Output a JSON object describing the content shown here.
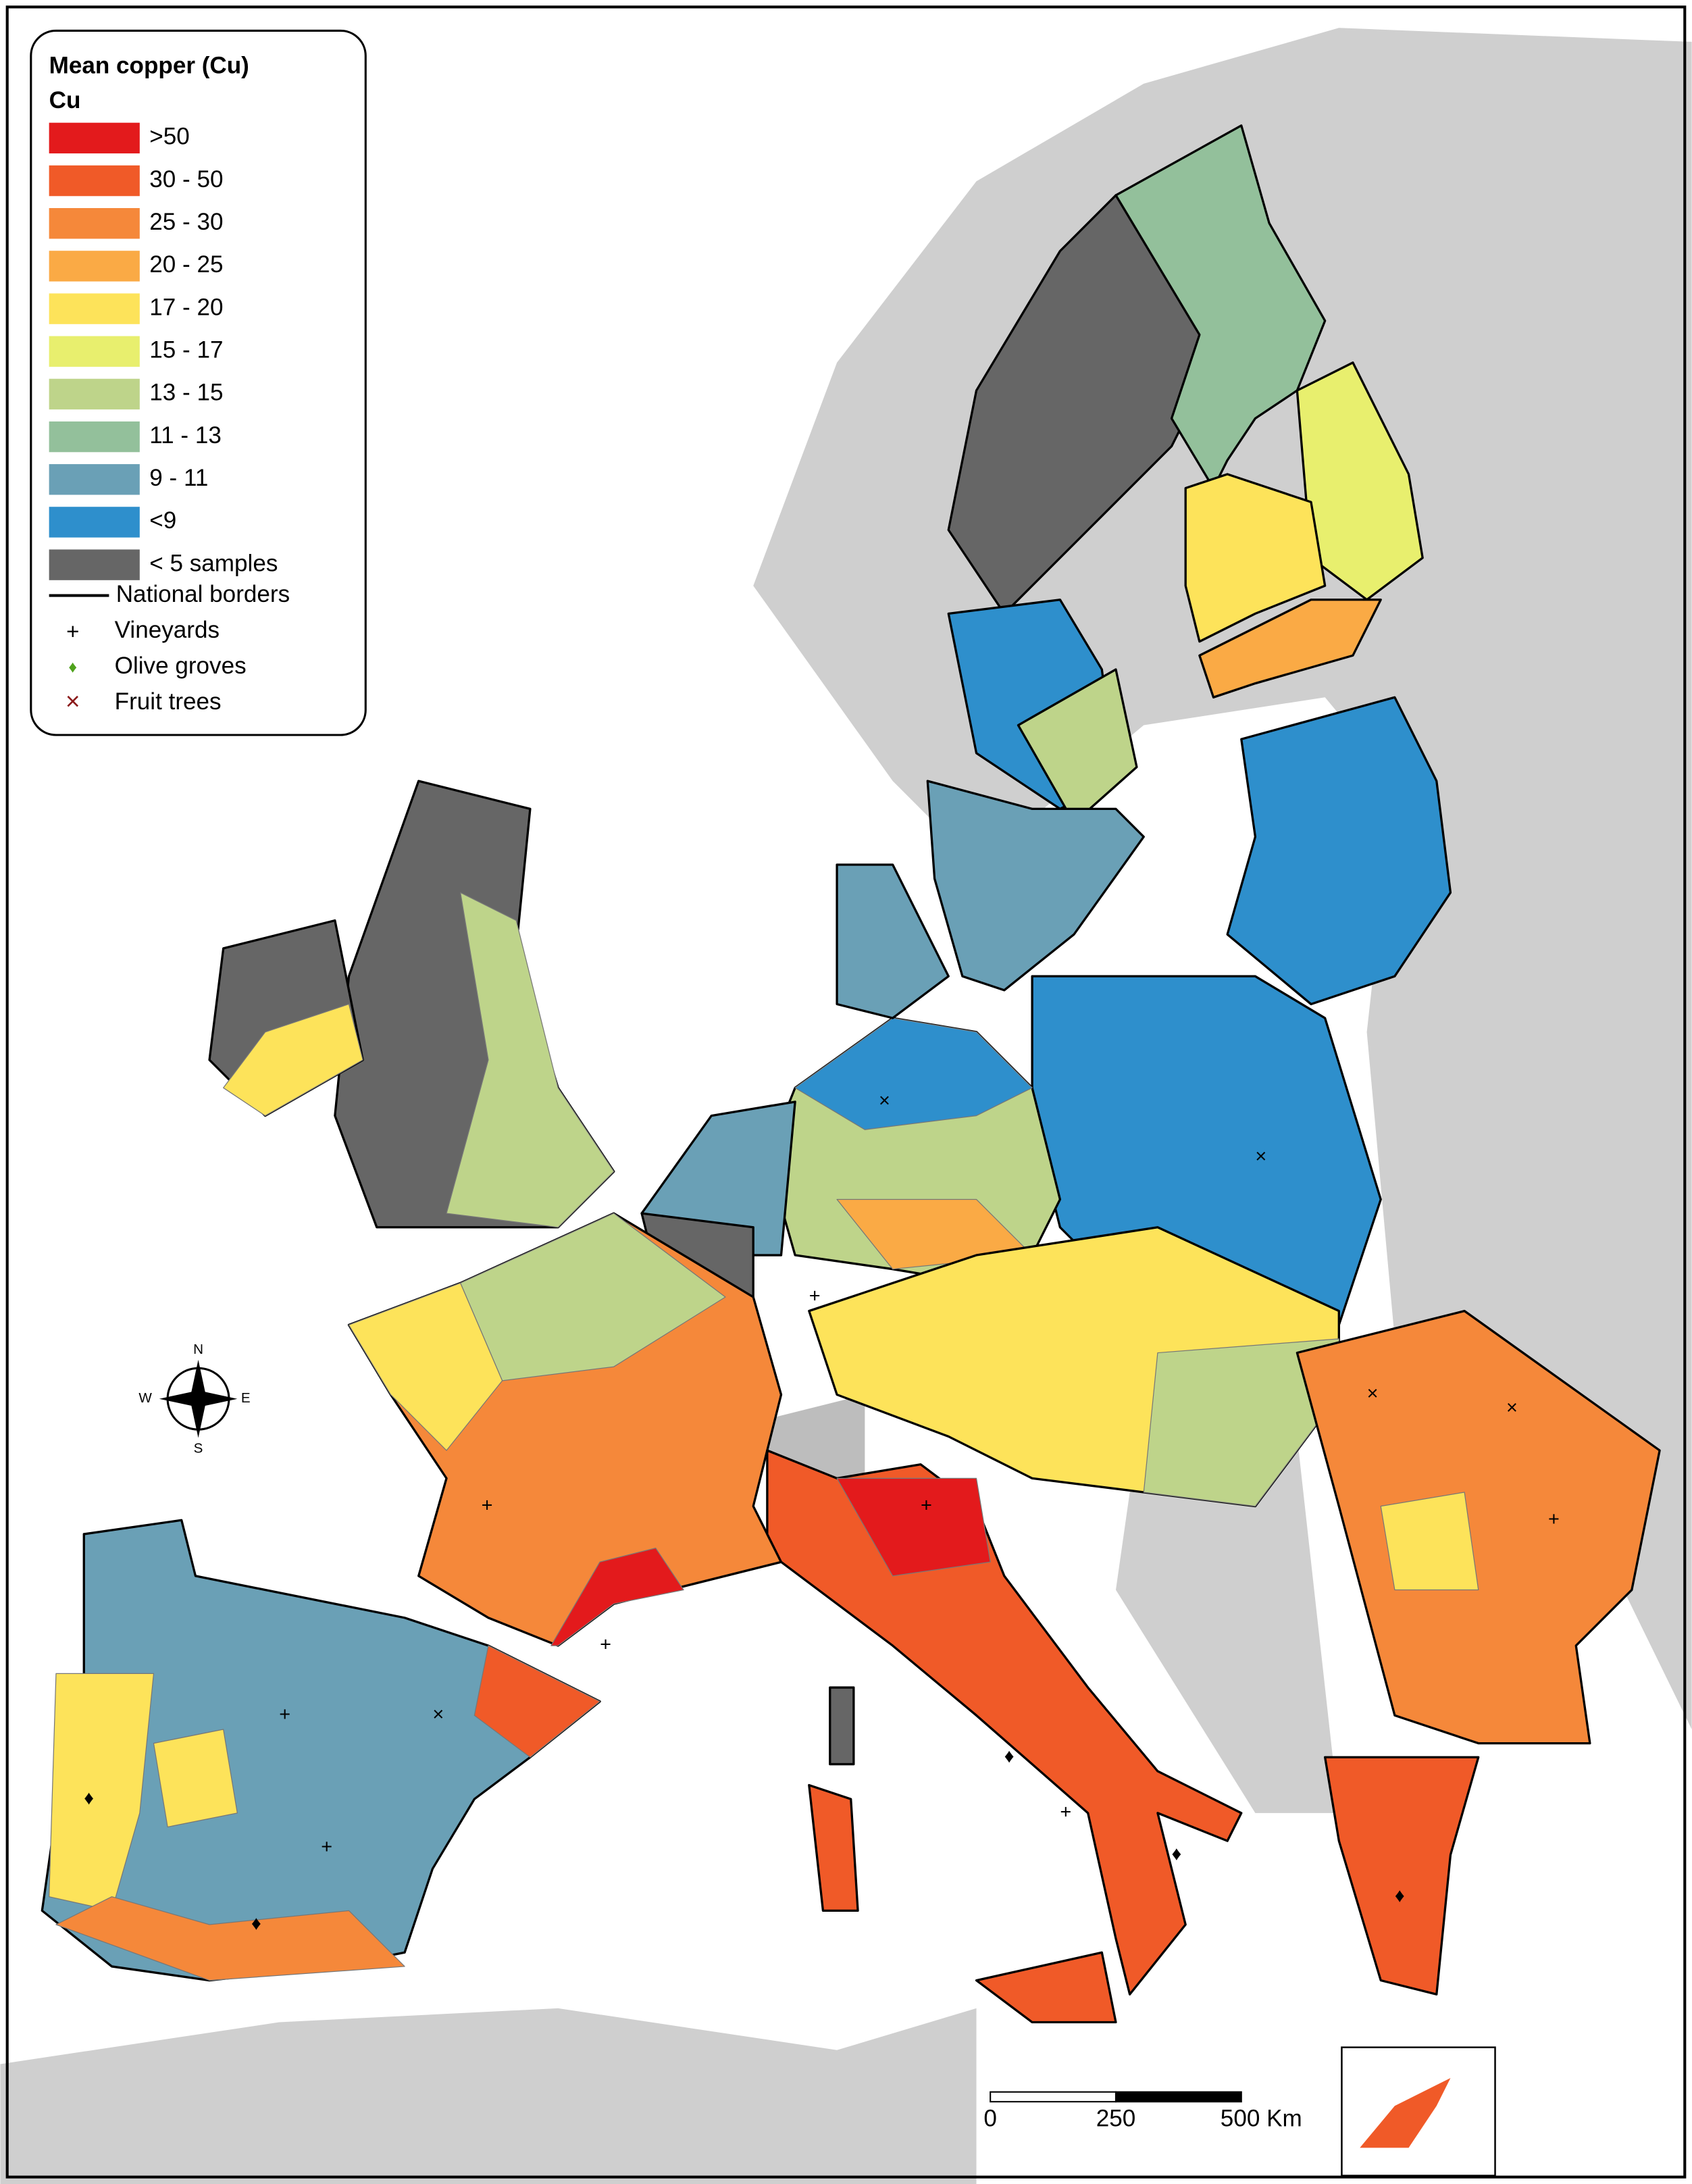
{
  "legend": {
    "title": "Mean copper (Cu)",
    "subtitle": "Cu",
    "classes": [
      {
        "label": ">50",
        "color": "#e31a1c"
      },
      {
        "label": "30 - 50",
        "color": "#f05a28"
      },
      {
        "label": "25 - 30",
        "color": "#f5883a"
      },
      {
        "label": "20 - 25",
        "color": "#faaa45"
      },
      {
        "label": "17 - 20",
        "color": "#fde35a"
      },
      {
        "label": "15 - 17",
        "color": "#e8ef6e"
      },
      {
        "label": "13 - 15",
        "color": "#bed48a"
      },
      {
        "label": "11 - 13",
        "color": "#93c09b"
      },
      {
        "label": "9 - 11",
        "color": "#6aa0b6"
      },
      {
        "label": "<9",
        "color": "#2e8fcc"
      },
      {
        "label": "< 5 samples",
        "color": "#666666"
      }
    ],
    "symbols": [
      {
        "label": "National borders"
      },
      {
        "label": "Vineyards"
      },
      {
        "label": "Olive groves"
      },
      {
        "label": "Fruit trees"
      }
    ]
  },
  "compass": {
    "north": "N",
    "west": "W",
    "east": "E",
    "south": "S"
  },
  "scale_bar": {
    "labels": [
      "0",
      "250",
      "500 Km"
    ]
  }
}
